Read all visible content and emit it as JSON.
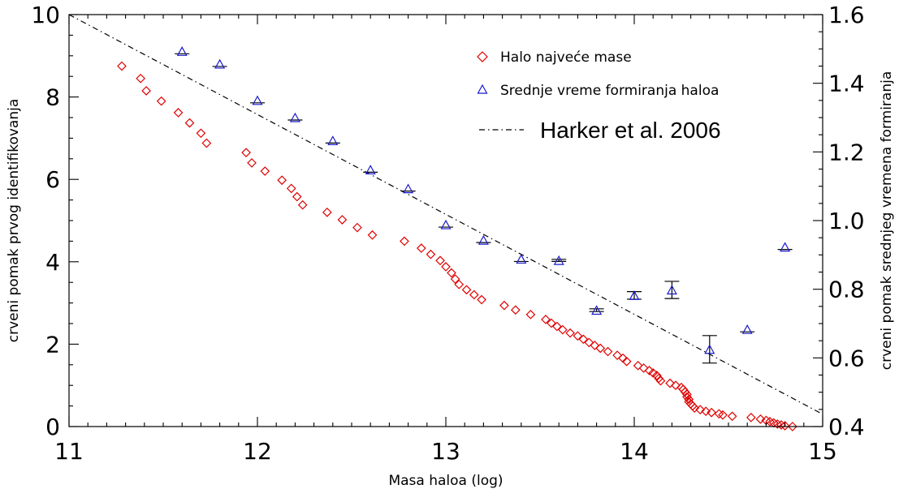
{
  "chart_data": {
    "type": "scatter",
    "xlabel": "Masa haloa (log)",
    "ylabel": "crveni pomak prvog identifikovanja",
    "y2label": "crveni pomak srednjeg vremena formiranja",
    "xlim": [
      11,
      15
    ],
    "ylim": [
      0,
      10
    ],
    "y2lim": [
      0.4,
      1.6
    ],
    "x_ticks": [
      11,
      12,
      13,
      14,
      15
    ],
    "y_ticks": [
      0,
      2,
      4,
      6,
      8,
      10
    ],
    "y2_ticks": [
      "0.4",
      "0.6",
      "0.8",
      "1.0",
      "1.2",
      "1.4",
      "1.6"
    ],
    "grid": false,
    "legend_position": "top-right",
    "series": [
      {
        "name": "Halo najveće mase",
        "marker": "diamond",
        "color": "#e00000",
        "axis": "left",
        "points": [
          [
            11.28,
            8.75
          ],
          [
            11.38,
            8.45
          ],
          [
            11.41,
            8.15
          ],
          [
            11.49,
            7.9
          ],
          [
            11.58,
            7.62
          ],
          [
            11.64,
            7.37
          ],
          [
            11.7,
            7.12
          ],
          [
            11.73,
            6.88
          ],
          [
            11.94,
            6.65
          ],
          [
            11.97,
            6.4
          ],
          [
            12.04,
            6.2
          ],
          [
            12.13,
            5.98
          ],
          [
            12.18,
            5.78
          ],
          [
            12.21,
            5.58
          ],
          [
            12.24,
            5.38
          ],
          [
            12.37,
            5.2
          ],
          [
            12.45,
            5.02
          ],
          [
            12.53,
            4.83
          ],
          [
            12.61,
            4.65
          ],
          [
            12.78,
            4.5
          ],
          [
            12.87,
            4.33
          ],
          [
            12.92,
            4.18
          ],
          [
            12.97,
            4.03
          ],
          [
            13.0,
            3.88
          ],
          [
            13.03,
            3.73
          ],
          [
            13.05,
            3.58
          ],
          [
            13.07,
            3.45
          ],
          [
            13.11,
            3.32
          ],
          [
            13.15,
            3.2
          ],
          [
            13.19,
            3.08
          ],
          [
            13.31,
            2.94
          ],
          [
            13.37,
            2.83
          ],
          [
            13.45,
            2.72
          ],
          [
            13.53,
            2.6
          ],
          [
            13.56,
            2.51
          ],
          [
            13.59,
            2.43
          ],
          [
            13.62,
            2.35
          ],
          [
            13.66,
            2.27
          ],
          [
            13.7,
            2.2
          ],
          [
            13.73,
            2.12
          ],
          [
            13.76,
            2.04
          ],
          [
            13.79,
            1.97
          ],
          [
            13.82,
            1.9
          ],
          [
            13.86,
            1.82
          ],
          [
            13.91,
            1.73
          ],
          [
            13.94,
            1.66
          ],
          [
            13.96,
            1.58
          ],
          [
            14.02,
            1.48
          ],
          [
            14.05,
            1.42
          ],
          [
            14.08,
            1.36
          ],
          [
            14.1,
            1.3
          ],
          [
            14.12,
            1.24
          ],
          [
            14.13,
            1.17
          ],
          [
            14.14,
            1.11
          ],
          [
            14.19,
            1.05
          ],
          [
            14.22,
            1.0
          ],
          [
            14.25,
            0.95
          ],
          [
            14.26,
            0.9
          ],
          [
            14.27,
            0.84
          ],
          [
            14.28,
            0.78
          ],
          [
            14.28,
            0.72
          ],
          [
            14.29,
            0.66
          ],
          [
            14.29,
            0.6
          ],
          [
            14.3,
            0.55
          ],
          [
            14.31,
            0.5
          ],
          [
            14.32,
            0.45
          ],
          [
            14.35,
            0.41
          ],
          [
            14.38,
            0.37
          ],
          [
            14.41,
            0.34
          ],
          [
            14.45,
            0.31
          ],
          [
            14.47,
            0.28
          ],
          [
            14.52,
            0.25
          ],
          [
            14.62,
            0.22
          ],
          [
            14.67,
            0.18
          ],
          [
            14.7,
            0.15
          ],
          [
            14.72,
            0.12
          ],
          [
            14.74,
            0.09
          ],
          [
            14.76,
            0.06
          ],
          [
            14.78,
            0.04
          ],
          [
            14.8,
            0.02
          ],
          [
            14.84,
            0.0
          ]
        ]
      },
      {
        "name": "Srednje vreme formiranja haloa",
        "marker": "triangle",
        "color": "#1a1acc",
        "axis": "right",
        "points": [
          [
            11.6,
            1.493,
            0.0
          ],
          [
            11.8,
            1.456,
            0.0
          ],
          [
            12.0,
            1.35,
            0.0
          ],
          [
            12.2,
            1.3,
            0.0
          ],
          [
            12.4,
            1.233,
            0.0
          ],
          [
            12.6,
            1.148,
            0.0
          ],
          [
            12.8,
            1.093,
            0.0
          ],
          [
            13.0,
            0.988,
            0.0
          ],
          [
            13.2,
            0.943,
            0.0
          ],
          [
            13.4,
            0.888,
            0.0
          ],
          [
            13.6,
            0.884,
            0.003
          ],
          [
            13.8,
            0.739,
            0.004
          ],
          [
            14.0,
            0.782,
            0.011
          ],
          [
            14.2,
            0.798,
            0.025
          ],
          [
            14.4,
            0.625,
            0.04
          ],
          [
            14.6,
            0.683,
            0.0
          ],
          [
            14.8,
            0.923,
            0.0
          ]
        ]
      },
      {
        "name": "Harker et al. 2006",
        "line_style": "dash-dot",
        "color": "#000000",
        "axis": "left",
        "points": [
          [
            11.0,
            10.0
          ],
          [
            15.0,
            0.3
          ]
        ]
      }
    ]
  }
}
